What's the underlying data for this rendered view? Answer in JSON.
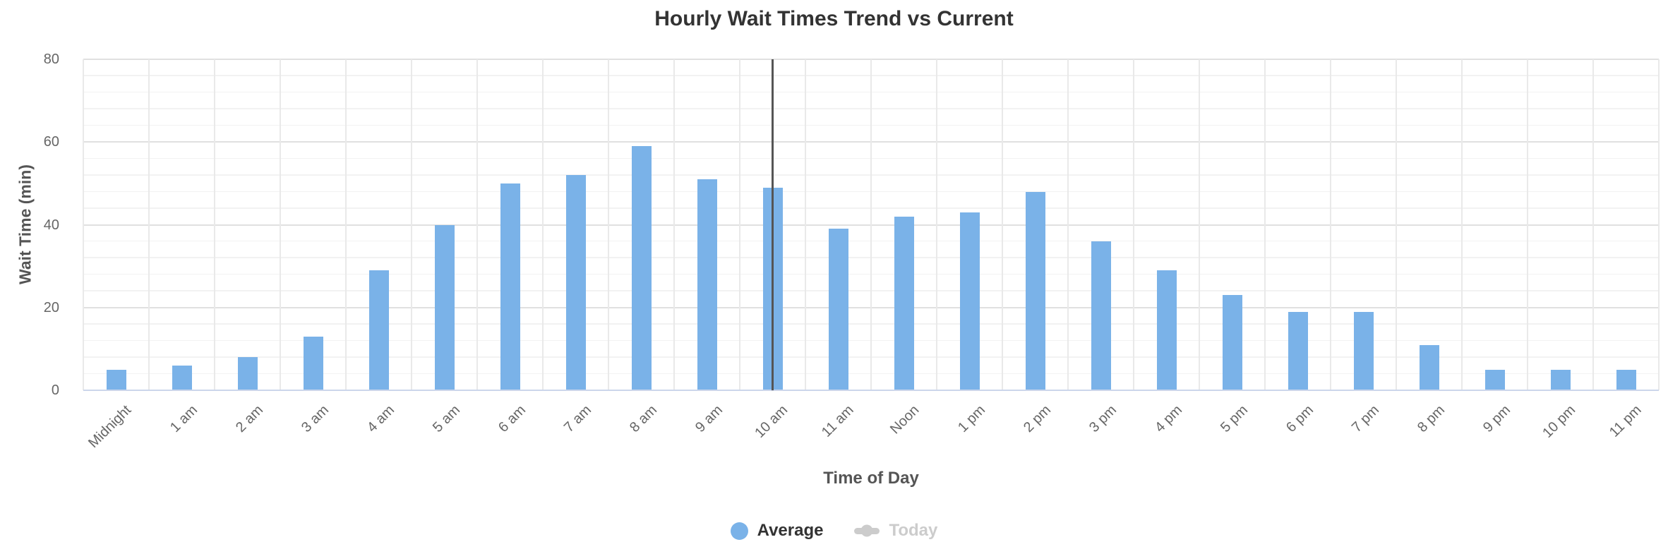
{
  "chart_data": {
    "type": "bar",
    "title": "Hourly Wait Times Trend vs Current",
    "xlabel": "Time of Day",
    "ylabel": "Wait Time (min)",
    "categories": [
      "Midnight",
      "1 am",
      "2 am",
      "3 am",
      "4 am",
      "5 am",
      "6 am",
      "7 am",
      "8 am",
      "9 am",
      "10 am",
      "11 am",
      "Noon",
      "1 pm",
      "2 pm",
      "3 pm",
      "4 pm",
      "5 pm",
      "6 pm",
      "7 pm",
      "8 pm",
      "9 pm",
      "10 pm",
      "11 pm"
    ],
    "series": [
      {
        "name": "Average",
        "type": "column",
        "color": "#7ab2e8",
        "visible": true,
        "values": [
          5,
          6,
          8,
          13,
          29,
          40,
          50,
          52,
          59,
          51,
          49,
          39,
          42,
          43,
          48,
          36,
          29,
          23,
          19,
          19,
          11,
          5,
          5,
          5
        ]
      },
      {
        "name": "Today",
        "type": "line",
        "color": "#cccccc",
        "visible": false,
        "values": []
      }
    ],
    "ylim": [
      0,
      80
    ],
    "y_ticks": [
      0,
      20,
      40,
      60,
      80
    ],
    "minor_tick_interval": 4,
    "grid": true,
    "legend_position": "bottom-center",
    "annotations": [
      {
        "type": "vertical-line",
        "at_category": "10 am",
        "color": "#555555"
      }
    ],
    "colors": {
      "bar": "#7ab2e8",
      "hidden_series": "#cccccc",
      "current_time_line": "#555555",
      "axis_line": "#ccd6eb",
      "grid_major": "#e0e0e0",
      "grid_minor": "#f2f2f2",
      "grid_vertical": "#e9e9e9",
      "title_text": "#333333",
      "tick_text": "#666666",
      "axis_title_text": "#555555"
    }
  }
}
